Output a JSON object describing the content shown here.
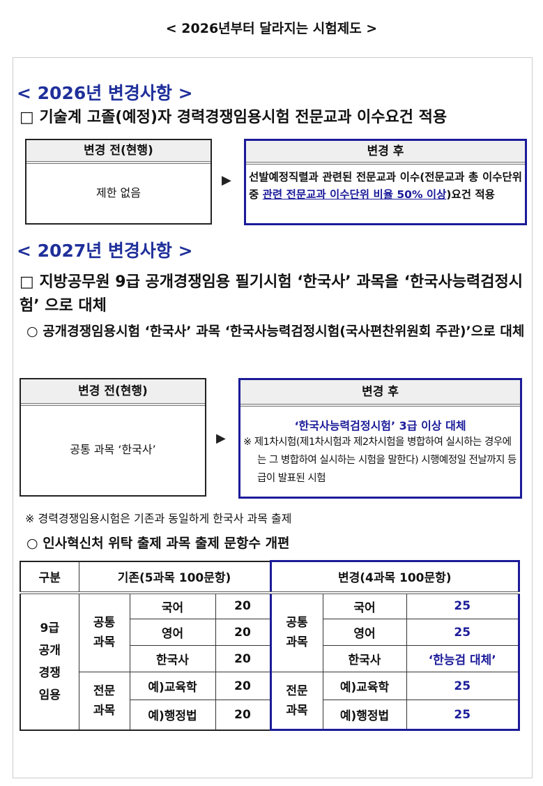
{
  "title": "< 2026년부터 달라지는 시험제도 >",
  "s2026": {
    "heading": "< 2026년 변경사항 >",
    "item": "□ 기술계 고졸(예정)자 경력경쟁임용시험 전문교과 이수요건 적용",
    "before_label": "변경 전(현행)",
    "before_text": "제한 없음",
    "after_label": "변경 후",
    "after_text_1": "선발예정직렬과 관련된 전문교과 이수(전문교과 총 이수단위 중 ",
    "after_text_hl": "관련 전문교과 이수단위 비율 50% 이상",
    "after_text_2": ")요건 적용"
  },
  "s2027": {
    "heading": "< 2027년 변경사항 >",
    "item": "□ 지방공무원 9급 공개경쟁임용 필기시험 ‘한국사’ 과목을 ‘한국사능력검정시험’ 으로 대체",
    "sub1": "○ 공개경쟁임용시험 ‘한국사’ 과목 ‘한국사능력검정시험(국사편찬위원회 주관)’으로 대체",
    "before_label": "변경 전(현행)",
    "before_text": "공통 과목 ‘한국사’",
    "after_label": "변경 후",
    "after_main": "‘한국사능력검정시험’ 3급 이상 대체",
    "after_note": "※ 제1차시험(제1차시험과 제2차시험을 병합하여 실시하는 경우에는 그 병합하여 실시하는 시험을 말한다) 시행예정일 전날까지 등급이 발표된 시험",
    "note": "※ 경력경쟁임용시험은 기존과 동일하게 한국사 과목 출제",
    "sub2": "○ 인사혁신처 위탁 출제 과목 출제 문항수 개편"
  },
  "table": {
    "h_category": "구분",
    "h_old": "기존(5과목 100문항)",
    "h_new": "변경(4과목 100문항)",
    "category": "9급 공개 경쟁 임용",
    "common": "공통 과목",
    "major": "전문 과목",
    "rows": [
      {
        "subject": "국어",
        "old": "20",
        "new": "25"
      },
      {
        "subject": "영어",
        "old": "20",
        "new": "25"
      },
      {
        "subject": "한국사",
        "old": "20",
        "new": "‘한능검 대체’"
      },
      {
        "subject": "예)교육학",
        "old": "20",
        "new": "25"
      },
      {
        "subject": "예)행정법",
        "old": "20",
        "new": "25"
      }
    ]
  },
  "colors": {
    "accent": "#1b1b9a"
  }
}
